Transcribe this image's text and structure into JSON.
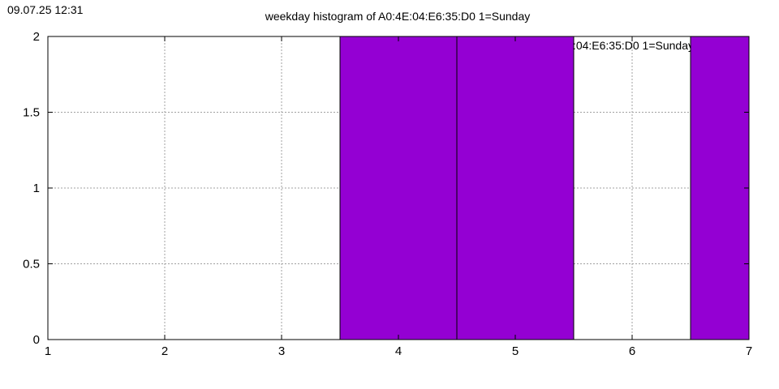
{
  "timestamp": "09.07.25 12:31",
  "chart_data": {
    "type": "bar",
    "title": "weekday histogram of A0:4E:04:E6:35:D0 1=Sunday",
    "legend_label": "A0:4E:04:E6:35:D0 1=Sunday",
    "legend_placement": "top-right",
    "xlim": [
      1,
      7
    ],
    "ylim": [
      0,
      2
    ],
    "x_ticks": [
      "1",
      "2",
      "3",
      "4",
      "5",
      "6",
      "7"
    ],
    "y_ticks": [
      "0",
      "0.5",
      "1",
      "1.5",
      "2"
    ],
    "grid": true,
    "bar_color": "#9400d3",
    "bars": [
      {
        "x": 4,
        "value": 2
      },
      {
        "x": 5,
        "value": 2
      },
      {
        "x": 7,
        "value": 2
      }
    ]
  }
}
